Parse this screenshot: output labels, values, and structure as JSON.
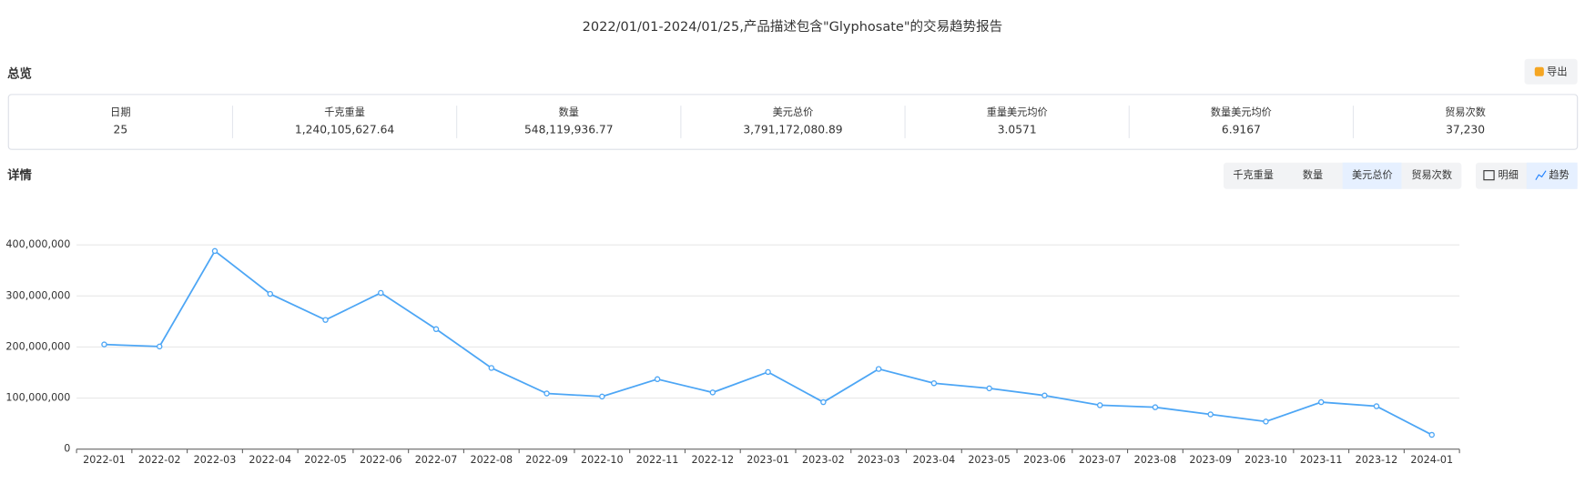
{
  "header": {
    "title": "2022/01/01-2024/01/25,产品描述包含\"Glyphosate\"的交易趋势报告"
  },
  "overview": {
    "title": "总览",
    "export": "导出",
    "stats": [
      {
        "label": "日期",
        "value": "25"
      },
      {
        "label": "千克重量",
        "value": "1,240,105,627.64"
      },
      {
        "label": "数量",
        "value": "548,119,936.77"
      },
      {
        "label": "美元总价",
        "value": "3,791,172,080.89"
      },
      {
        "label": "重量美元均价",
        "value": "3.0571"
      },
      {
        "label": "数量美元均价",
        "value": "6.9167"
      },
      {
        "label": "贸易次数",
        "value": "37,230"
      }
    ]
  },
  "details": {
    "title": "详情",
    "metric_tabs": [
      "千克重量",
      "数量",
      "美元总价",
      "贸易次数"
    ],
    "view_tabs": [
      "明细",
      "趋势"
    ]
  },
  "chart_data": {
    "type": "line",
    "categories": [
      "2022-01",
      "2022-02",
      "2022-03",
      "2022-04",
      "2022-05",
      "2022-06",
      "2022-07",
      "2022-08",
      "2022-09",
      "2022-10",
      "2022-11",
      "2022-12",
      "2023-01",
      "2023-02",
      "2023-03",
      "2023-04",
      "2023-05",
      "2023-06",
      "2023-07",
      "2023-08",
      "2023-09",
      "2023-10",
      "2023-11",
      "2023-12",
      "2024-01"
    ],
    "values": [
      205000000,
      201000000,
      388000000,
      304000000,
      253000000,
      306000000,
      235000000,
      159000000,
      109000000,
      103000000,
      137000000,
      111000000,
      151000000,
      92000000,
      157000000,
      129000000,
      119000000,
      105000000,
      86000000,
      82000000,
      68000000,
      54000000,
      92000000,
      84000000,
      28000000
    ],
    "color": "#4da6f5",
    "ylim": [
      0,
      400000000
    ],
    "yticks": [
      0,
      {
        "value": 100000000,
        "label": "100,000,000"
      },
      {
        "value": 200000000,
        "label": "200,000,000"
      },
      {
        "value": 300000000,
        "label": "300,000,000"
      },
      {
        "value": 400000000,
        "label": "400,000,000"
      }
    ],
    "grid": true
  }
}
